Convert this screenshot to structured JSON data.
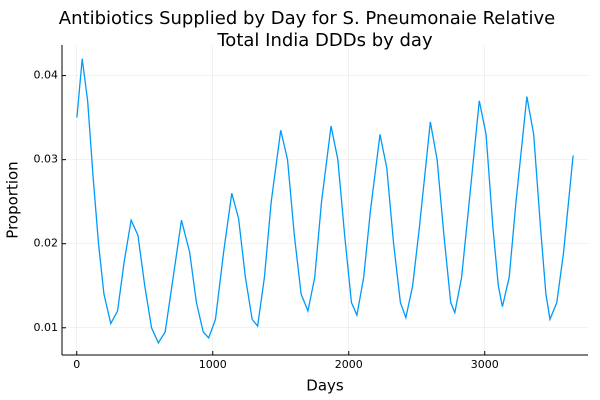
{
  "chart_data": {
    "type": "line",
    "title": [
      "Antibiotics Supplied by Day for S. Pneumonaie Relative",
      "Total India DDDs by day"
    ],
    "x_label": "Days",
    "y_label": "Proportion",
    "x": [
      1,
      40,
      80,
      120,
      160,
      200,
      250,
      300,
      350,
      400,
      450,
      500,
      550,
      600,
      650,
      700,
      770,
      830,
      880,
      930,
      970,
      1020,
      1080,
      1140,
      1190,
      1240,
      1290,
      1330,
      1380,
      1430,
      1500,
      1550,
      1600,
      1650,
      1700,
      1750,
      1800,
      1870,
      1920,
      1970,
      2020,
      2060,
      2110,
      2160,
      2230,
      2280,
      2330,
      2380,
      2420,
      2470,
      2520,
      2600,
      2650,
      2700,
      2750,
      2780,
      2830,
      2880,
      2960,
      3010,
      3060,
      3100,
      3130,
      3180,
      3230,
      3310,
      3360,
      3410,
      3450,
      3480,
      3530,
      3580,
      3650
    ],
    "series": [
      {
        "color": "#009af9",
        "values": [
          0.035,
          0.042,
          0.037,
          0.028,
          0.02,
          0.014,
          0.0105,
          0.012,
          0.018,
          0.0228,
          0.021,
          0.015,
          0.01,
          0.0082,
          0.0095,
          0.015,
          0.0228,
          0.019,
          0.013,
          0.0095,
          0.0088,
          0.011,
          0.019,
          0.026,
          0.023,
          0.016,
          0.011,
          0.0102,
          0.016,
          0.025,
          0.0335,
          0.03,
          0.021,
          0.014,
          0.012,
          0.016,
          0.025,
          0.034,
          0.03,
          0.021,
          0.013,
          0.0115,
          0.016,
          0.024,
          0.033,
          0.029,
          0.02,
          0.013,
          0.0112,
          0.015,
          0.022,
          0.0345,
          0.03,
          0.021,
          0.013,
          0.0118,
          0.016,
          0.024,
          0.037,
          0.033,
          0.022,
          0.015,
          0.0125,
          0.016,
          0.025,
          0.0375,
          0.033,
          0.022,
          0.014,
          0.011,
          0.013,
          0.019,
          0.0305
        ]
      }
    ],
    "xlim": [
      -108.5,
      3759.5
    ],
    "ylim": [
      0.00676,
      0.04364
    ],
    "xticks": [
      0,
      1000,
      2000,
      3000
    ],
    "yticks": [
      0.01,
      0.02,
      0.03,
      0.04
    ],
    "grid": true
  }
}
